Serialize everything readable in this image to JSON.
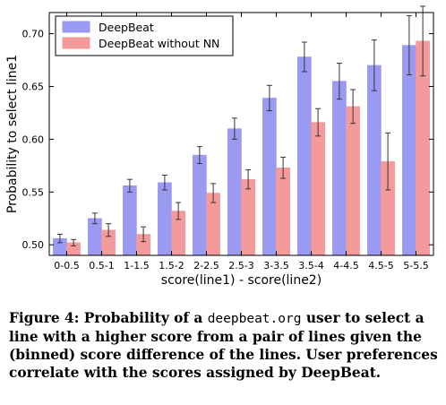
{
  "chart_data": {
    "type": "bar",
    "title": "",
    "xlabel": "score(line1) - score(line2)",
    "ylabel": "Probability to select line1",
    "ylim": [
      0.49,
      0.72
    ],
    "yticks": [
      "0.50",
      "0.55",
      "0.60",
      "0.65",
      "0.70"
    ],
    "grid": false,
    "legend_position": "top-left",
    "categories": [
      "0-0.5",
      "0.5-1",
      "1-1.5",
      "1.5-2",
      "2-2.5",
      "2.5-3",
      "3-3.5",
      "3.5-4",
      "4-4.5",
      "4.5-5",
      "5-5.5"
    ],
    "series": [
      {
        "name": "DeepBeat",
        "color": "#9a9af2",
        "values": [
          0.506,
          0.525,
          0.556,
          0.559,
          0.585,
          0.61,
          0.639,
          0.678,
          0.655,
          0.67,
          0.689
        ],
        "errors": [
          0.004,
          0.005,
          0.006,
          0.007,
          0.008,
          0.01,
          0.012,
          0.014,
          0.017,
          0.024,
          0.028
        ]
      },
      {
        "name": "DeepBeat without NN",
        "color": "#f59a9a",
        "values": [
          0.502,
          0.514,
          0.51,
          0.532,
          0.549,
          0.562,
          0.573,
          0.616,
          0.631,
          0.579,
          0.693
        ],
        "errors": [
          0.003,
          0.006,
          0.007,
          0.008,
          0.009,
          0.009,
          0.01,
          0.013,
          0.016,
          0.027,
          0.033
        ]
      }
    ]
  },
  "caption": {
    "label": "Figure 4:",
    "text_1": " Probability of a ",
    "code": "deepbeat.org",
    "text_2": " user to select a line with a higher score from a pair of lines given the (binned) score difference of the lines. User preferences correlate with the scores assigned by DeepBeat."
  }
}
